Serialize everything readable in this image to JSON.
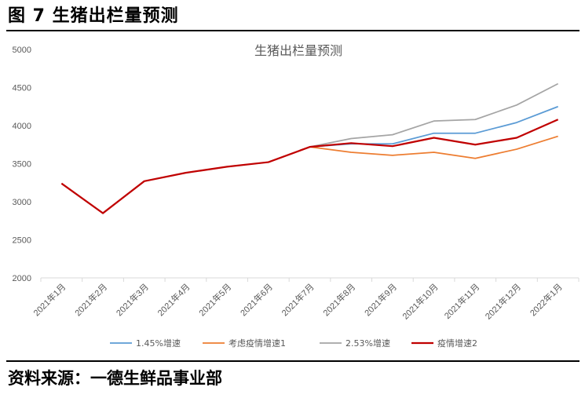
{
  "figure_title": "图 7  生猪出栏量预测",
  "source": "资料来源：一德生鲜品事业部",
  "colors": {
    "series_1": "#5b9bd5",
    "series_2": "#ed7d31",
    "series_3": "#a5a5a5",
    "series_4": "#c00000",
    "axis": "#d9d9d9",
    "text": "#595959"
  },
  "chart_data": {
    "type": "line",
    "title": "生猪出栏量预测",
    "xlabel": "",
    "ylabel": "",
    "ylim": [
      2000,
      5000
    ],
    "y_ticks": [
      2000,
      2500,
      3000,
      3500,
      4000,
      4500,
      5000
    ],
    "grid": false,
    "legend_position": "bottom",
    "categories": [
      "2021年1月",
      "2021年2月",
      "2021年3月",
      "2021年4月",
      "2021年5月",
      "2021年6月",
      "2021年7月",
      "2021年8月",
      "2021年9月",
      "2021年10月",
      "2021年11月",
      "2021年12月",
      "2022年1月"
    ],
    "series": [
      {
        "name": "1.45%增速",
        "color": "#5b9bd5",
        "values": [
          null,
          null,
          null,
          null,
          null,
          null,
          3720,
          3760,
          3760,
          3900,
          3900,
          4040,
          4250
        ]
      },
      {
        "name": "考虑疫情增速1",
        "color": "#ed7d31",
        "values": [
          null,
          null,
          null,
          null,
          null,
          null,
          3720,
          3650,
          3610,
          3650,
          3570,
          3690,
          3860
        ]
      },
      {
        "name": "2.53%增速",
        "color": "#a5a5a5",
        "values": [
          null,
          null,
          null,
          null,
          null,
          null,
          3720,
          3830,
          3880,
          4060,
          4080,
          4270,
          4550
        ]
      },
      {
        "name": "疫情增速2",
        "color": "#c00000",
        "values": [
          3240,
          2850,
          3270,
          3380,
          3460,
          3520,
          3720,
          3770,
          3730,
          3840,
          3750,
          3840,
          4080
        ]
      }
    ]
  }
}
